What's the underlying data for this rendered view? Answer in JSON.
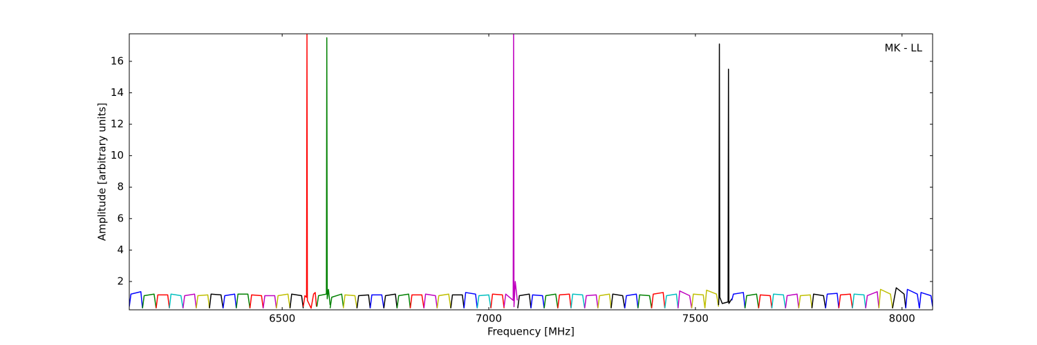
{
  "chart_data": {
    "type": "line",
    "annotation": "MK - LL",
    "xlabel": "Frequency [MHz]",
    "ylabel": "Amplitude [arbitrary units]",
    "xlim": [
      6130,
      8074
    ],
    "ylim": [
      0.2,
      17.75
    ],
    "xticks": [
      6500,
      7000,
      7500,
      8000
    ],
    "yticks": [
      2,
      4,
      6,
      8,
      10,
      12,
      14,
      16
    ],
    "grid": false,
    "series": [
      {
        "color": "#0000ff",
        "x": [
          6130,
          6134,
          6158,
          6162
        ],
        "values": [
          0.4,
          1.2,
          1.35,
          0.3
        ]
      },
      {
        "color": "#008000",
        "x": [
          6162,
          6166,
          6190,
          6195
        ],
        "values": [
          0.3,
          1.1,
          1.2,
          0.3
        ]
      },
      {
        "color": "#ff0000",
        "x": [
          6195,
          6199,
          6223,
          6227
        ],
        "values": [
          0.3,
          1.15,
          1.15,
          0.3
        ]
      },
      {
        "color": "#00bfbf",
        "x": [
          6227,
          6231,
          6255,
          6260
        ],
        "values": [
          0.3,
          1.2,
          1.1,
          0.3
        ]
      },
      {
        "color": "#bf00bf",
        "x": [
          6260,
          6264,
          6288,
          6292
        ],
        "values": [
          0.3,
          1.1,
          1.2,
          0.3
        ]
      },
      {
        "color": "#bfbf00",
        "x": [
          6292,
          6296,
          6320,
          6324
        ],
        "values": [
          0.3,
          1.1,
          1.15,
          0.3
        ]
      },
      {
        "color": "#000000",
        "x": [
          6324,
          6328,
          6352,
          6357
        ],
        "values": [
          0.3,
          1.2,
          1.15,
          0.3
        ]
      },
      {
        "color": "#0000ff",
        "x": [
          6357,
          6361,
          6385,
          6389
        ],
        "values": [
          0.3,
          1.1,
          1.2,
          0.3
        ]
      },
      {
        "color": "#008000",
        "x": [
          6389,
          6393,
          6417,
          6422
        ],
        "values": [
          0.3,
          1.2,
          1.2,
          0.3
        ]
      },
      {
        "color": "#ff0000",
        "x": [
          6422,
          6426,
          6450,
          6454
        ],
        "values": [
          0.3,
          1.15,
          1.1,
          0.3
        ]
      },
      {
        "color": "#bf00bf",
        "x": [
          6454,
          6458,
          6482,
          6486
        ],
        "values": [
          0.3,
          1.1,
          1.1,
          0.3
        ]
      },
      {
        "color": "#bfbf00",
        "x": [
          6486,
          6490,
          6514,
          6519
        ],
        "values": [
          0.3,
          1.1,
          1.2,
          0.3
        ]
      },
      {
        "color": "#000000",
        "x": [
          6519,
          6523,
          6547,
          6551
        ],
        "values": [
          0.3,
          1.2,
          1.1,
          0.3
        ]
      },
      {
        "color": "#ff0000",
        "x": [
          6551,
          6555,
          6559,
          6560,
          6561,
          6570,
          6576,
          6580,
          6583
        ],
        "values": [
          0.4,
          1.1,
          1.0,
          17.7,
          0.8,
          0.3,
          1.2,
          1.3,
          0.4
        ]
      },
      {
        "color": "#008000",
        "x": [
          6584,
          6588,
          6607,
          6608,
          6609,
          6612,
          6616
        ],
        "values": [
          0.4,
          1.1,
          1.2,
          17.5,
          0.9,
          1.5,
          0.5
        ]
      },
      {
        "color": "#008000",
        "x": [
          6616,
          6620,
          6644,
          6648
        ],
        "values": [
          0.3,
          1.0,
          1.2,
          0.4
        ]
      },
      {
        "color": "#bfbf00",
        "x": [
          6648,
          6652,
          6676,
          6681
        ],
        "values": [
          0.3,
          1.15,
          1.1,
          0.3
        ]
      },
      {
        "color": "#000000",
        "x": [
          6681,
          6685,
          6709,
          6713
        ],
        "values": [
          0.3,
          1.1,
          1.15,
          0.3
        ]
      },
      {
        "color": "#0000ff",
        "x": [
          6713,
          6717,
          6741,
          6746
        ],
        "values": [
          0.3,
          1.15,
          1.15,
          0.3
        ]
      },
      {
        "color": "#000000",
        "x": [
          6746,
          6750,
          6774,
          6778
        ],
        "values": [
          0.3,
          1.1,
          1.2,
          0.3
        ]
      },
      {
        "color": "#008000",
        "x": [
          6778,
          6782,
          6806,
          6810
        ],
        "values": [
          0.3,
          1.1,
          1.2,
          0.3
        ]
      },
      {
        "color": "#ff0000",
        "x": [
          6810,
          6814,
          6838,
          6843
        ],
        "values": [
          0.3,
          1.15,
          1.15,
          0.3
        ]
      },
      {
        "color": "#bf00bf",
        "x": [
          6843,
          6847,
          6871,
          6875
        ],
        "values": [
          0.3,
          1.2,
          1.1,
          0.3
        ]
      },
      {
        "color": "#bfbf00",
        "x": [
          6875,
          6879,
          6903,
          6908
        ],
        "values": [
          0.3,
          1.1,
          1.2,
          0.3
        ]
      },
      {
        "color": "#000000",
        "x": [
          6908,
          6912,
          6936,
          6940
        ],
        "values": [
          0.3,
          1.15,
          1.15,
          0.3
        ]
      },
      {
        "color": "#0000ff",
        "x": [
          6940,
          6944,
          6968,
          6972
        ],
        "values": [
          0.3,
          1.3,
          1.2,
          0.3
        ]
      },
      {
        "color": "#00bfbf",
        "x": [
          6972,
          6976,
          7000,
          7005
        ],
        "values": [
          0.3,
          1.1,
          1.15,
          0.3
        ]
      },
      {
        "color": "#ff0000",
        "x": [
          7005,
          7009,
          7033,
          7037
        ],
        "values": [
          0.3,
          1.2,
          1.15,
          0.3
        ]
      },
      {
        "color": "#bf00bf",
        "x": [
          7037,
          7041,
          7059,
          7060,
          7061,
          7064,
          7069
        ],
        "values": [
          0.4,
          1.2,
          0.8,
          17.7,
          0.4,
          2.0,
          0.8
        ]
      },
      {
        "color": "#000000",
        "x": [
          7070,
          7074,
          7098,
          7102
        ],
        "values": [
          0.3,
          1.1,
          1.2,
          0.3
        ]
      },
      {
        "color": "#0000ff",
        "x": [
          7102,
          7106,
          7130,
          7134
        ],
        "values": [
          0.3,
          1.15,
          1.1,
          0.3
        ]
      },
      {
        "color": "#008000",
        "x": [
          7134,
          7138,
          7162,
          7167
        ],
        "values": [
          0.3,
          1.1,
          1.2,
          0.3
        ]
      },
      {
        "color": "#ff0000",
        "x": [
          7167,
          7171,
          7195,
          7199
        ],
        "values": [
          0.3,
          1.15,
          1.2,
          0.3
        ]
      },
      {
        "color": "#00bfbf",
        "x": [
          7199,
          7203,
          7227,
          7232
        ],
        "values": [
          0.3,
          1.2,
          1.15,
          0.3
        ]
      },
      {
        "color": "#bf00bf",
        "x": [
          7232,
          7236,
          7260,
          7264
        ],
        "values": [
          0.3,
          1.1,
          1.15,
          0.3
        ]
      },
      {
        "color": "#bfbf00",
        "x": [
          7264,
          7268,
          7292,
          7296
        ],
        "values": [
          0.3,
          1.1,
          1.2,
          0.3
        ]
      },
      {
        "color": "#000000",
        "x": [
          7296,
          7300,
          7324,
          7329
        ],
        "values": [
          0.3,
          1.2,
          1.1,
          0.3
        ]
      },
      {
        "color": "#0000ff",
        "x": [
          7329,
          7333,
          7357,
          7361
        ],
        "values": [
          0.3,
          1.1,
          1.2,
          0.3
        ]
      },
      {
        "color": "#008000",
        "x": [
          7361,
          7365,
          7389,
          7394
        ],
        "values": [
          0.3,
          1.15,
          1.1,
          0.3
        ]
      },
      {
        "color": "#ff0000",
        "x": [
          7394,
          7398,
          7422,
          7426
        ],
        "values": [
          0.3,
          1.2,
          1.3,
          0.3
        ]
      },
      {
        "color": "#00bfbf",
        "x": [
          7426,
          7430,
          7454,
          7458
        ],
        "values": [
          0.3,
          1.1,
          1.2,
          0.3
        ]
      },
      {
        "color": "#bf00bf",
        "x": [
          7458,
          7462,
          7486,
          7491
        ],
        "values": [
          0.3,
          1.4,
          1.1,
          0.3
        ]
      },
      {
        "color": "#bfbf00",
        "x": [
          7491,
          7495,
          7519,
          7523
        ],
        "values": [
          0.3,
          1.2,
          1.15,
          0.3
        ]
      },
      {
        "color": "#bfbf00",
        "x": [
          7523,
          7527,
          7551,
          7556
        ],
        "values": [
          0.3,
          1.45,
          1.2,
          0.4
        ]
      },
      {
        "color": "#000000",
        "x": [
          7556,
          7557,
          7558,
          7559,
          7565,
          7579,
          7580,
          7581,
          7588
        ],
        "values": [
          0.5,
          1.0,
          17.1,
          1.0,
          0.6,
          0.7,
          15.5,
          0.6,
          0.9
        ]
      },
      {
        "color": "#0000ff",
        "x": [
          7588,
          7592,
          7616,
          7620
        ],
        "values": [
          0.8,
          1.2,
          1.3,
          0.3
        ]
      },
      {
        "color": "#008000",
        "x": [
          7620,
          7624,
          7648,
          7653
        ],
        "values": [
          0.3,
          1.1,
          1.2,
          0.3
        ]
      },
      {
        "color": "#ff0000",
        "x": [
          7653,
          7657,
          7681,
          7685
        ],
        "values": [
          0.3,
          1.15,
          1.1,
          0.3
        ]
      },
      {
        "color": "#00bfbf",
        "x": [
          7685,
          7689,
          7713,
          7718
        ],
        "values": [
          0.3,
          1.2,
          1.15,
          0.3
        ]
      },
      {
        "color": "#bf00bf",
        "x": [
          7718,
          7722,
          7746,
          7750
        ],
        "values": [
          0.3,
          1.1,
          1.2,
          0.3
        ]
      },
      {
        "color": "#bfbf00",
        "x": [
          7750,
          7754,
          7778,
          7782
        ],
        "values": [
          0.3,
          1.1,
          1.15,
          0.3
        ]
      },
      {
        "color": "#000000",
        "x": [
          7782,
          7786,
          7810,
          7815
        ],
        "values": [
          0.3,
          1.2,
          1.1,
          0.3
        ]
      },
      {
        "color": "#0000ff",
        "x": [
          7815,
          7819,
          7843,
          7847
        ],
        "values": [
          0.3,
          1.2,
          1.25,
          0.3
        ]
      },
      {
        "color": "#ff0000",
        "x": [
          7847,
          7851,
          7875,
          7880
        ],
        "values": [
          0.3,
          1.15,
          1.2,
          0.3
        ]
      },
      {
        "color": "#00bfbf",
        "x": [
          7880,
          7884,
          7908,
          7912
        ],
        "values": [
          0.3,
          1.2,
          1.15,
          0.3
        ]
      },
      {
        "color": "#bf00bf",
        "x": [
          7912,
          7916,
          7940,
          7944
        ],
        "values": [
          0.3,
          1.1,
          1.35,
          0.3
        ]
      },
      {
        "color": "#bfbf00",
        "x": [
          7944,
          7948,
          7972,
          7977
        ],
        "values": [
          0.3,
          1.5,
          1.2,
          0.3
        ]
      },
      {
        "color": "#000000",
        "x": [
          7977,
          7981,
          7986,
          8005,
          8009
        ],
        "values": [
          0.3,
          0.9,
          1.6,
          1.2,
          0.3
        ]
      },
      {
        "color": "#0000ff",
        "x": [
          8009,
          8013,
          8037,
          8042
        ],
        "values": [
          0.3,
          1.5,
          1.2,
          0.3
        ]
      },
      {
        "color": "#0000ff",
        "x": [
          8042,
          8046,
          8070,
          8074
        ],
        "values": [
          0.3,
          1.3,
          1.1,
          0.4
        ]
      }
    ]
  }
}
